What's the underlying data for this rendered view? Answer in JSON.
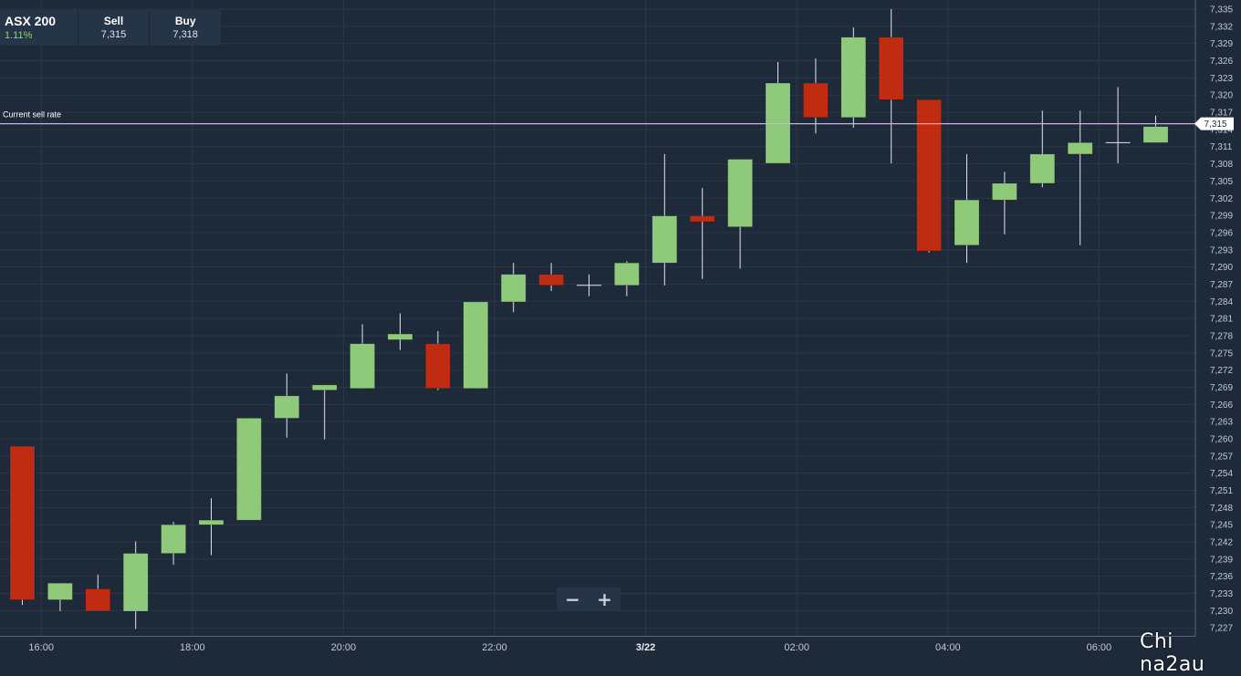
{
  "ticker": {
    "name": "ASX 200",
    "change": "1.11%",
    "sell_label": "Sell",
    "sell_value": "7,315",
    "buy_label": "Buy",
    "buy_value": "7,318"
  },
  "zoom": {
    "minus": "−",
    "plus": "+"
  },
  "watermark": "Chi na2au",
  "colors": {
    "background": "#1e2a3a",
    "up": "#8fc97a",
    "down": "#bf2c12",
    "current_line": "#d9a7e6"
  },
  "chart_data": {
    "type": "candlestick",
    "title": "",
    "xlabel": "",
    "ylabel": "",
    "ylim": [
      7225.6,
      7336.6
    ],
    "grid": true,
    "y_ticks": [
      7227,
      7230,
      7233,
      7236,
      7239,
      7242,
      7245,
      7248,
      7251,
      7254,
      7257,
      7260,
      7263,
      7266,
      7269,
      7272,
      7275,
      7278,
      7281,
      7284,
      7287,
      7290,
      7293,
      7296,
      7299,
      7302,
      7305,
      7308,
      7311,
      7314,
      7317,
      7320,
      7323,
      7326,
      7329,
      7332,
      7335
    ],
    "y_tick_labels": [
      "7,227",
      "7,230",
      "7,233",
      "7,236",
      "7,239",
      "7,242",
      "7,245",
      "7,248",
      "7,251",
      "7,254",
      "7,257",
      "7,260",
      "7,263",
      "7,266",
      "7,269",
      "7,272",
      "7,275",
      "7,278",
      "7,281",
      "7,284",
      "7,287",
      "7,290",
      "7,293",
      "7,296",
      "7,299",
      "7,302",
      "7,305",
      "7,308",
      "7,311",
      "7,314",
      "7,317",
      "7,320",
      "7,323",
      "7,326",
      "7,329",
      "7,332",
      "7,335"
    ],
    "x_ticks": [
      {
        "label": "16:00",
        "index": 0.5,
        "bold": false
      },
      {
        "label": "18:00",
        "index": 4.5,
        "bold": false
      },
      {
        "label": "20:00",
        "index": 8.5,
        "bold": false
      },
      {
        "label": "22:00",
        "index": 12.5,
        "bold": false
      },
      {
        "label": "3/22",
        "index": 16.5,
        "bold": true
      },
      {
        "label": "02:00",
        "index": 20.5,
        "bold": false
      },
      {
        "label": "04:00",
        "index": 24.5,
        "bold": false
      },
      {
        "label": "06:00",
        "index": 28.5,
        "bold": false
      }
    ],
    "candles": [
      {
        "o": 7258.7,
        "h": 7258.7,
        "l": 7231.0,
        "c": 7231.9
      },
      {
        "o": 7231.9,
        "h": 7234.8,
        "l": 7229.9,
        "c": 7234.8
      },
      {
        "o": 7233.8,
        "h": 7236.3,
        "l": 7229.9,
        "c": 7229.9
      },
      {
        "o": 7229.9,
        "h": 7242.1,
        "l": 7226.8,
        "c": 7240.0
      },
      {
        "o": 7240.0,
        "h": 7245.5,
        "l": 7238.0,
        "c": 7245.0
      },
      {
        "o": 7245.0,
        "h": 7249.6,
        "l": 7239.7,
        "c": 7245.8
      },
      {
        "o": 7245.8,
        "h": 7263.6,
        "l": 7245.8,
        "c": 7263.6
      },
      {
        "o": 7263.6,
        "h": 7271.4,
        "l": 7260.2,
        "c": 7267.5
      },
      {
        "o": 7268.5,
        "h": 7269.4,
        "l": 7259.9,
        "c": 7269.4
      },
      {
        "o": 7268.8,
        "h": 7280.0,
        "l": 7268.8,
        "c": 7276.6
      },
      {
        "o": 7277.3,
        "h": 7281.9,
        "l": 7275.5,
        "c": 7278.3
      },
      {
        "o": 7276.6,
        "h": 7278.8,
        "l": 7268.5,
        "c": 7268.8
      },
      {
        "o": 7268.8,
        "h": 7283.9,
        "l": 7268.8,
        "c": 7283.9
      },
      {
        "o": 7283.9,
        "h": 7290.7,
        "l": 7282.1,
        "c": 7288.7
      },
      {
        "o": 7288.7,
        "h": 7290.7,
        "l": 7285.8,
        "c": 7286.8
      },
      {
        "o": 7286.8,
        "h": 7288.7,
        "l": 7284.9,
        "c": 7286.8
      },
      {
        "o": 7286.8,
        "h": 7291.0,
        "l": 7284.9,
        "c": 7290.7
      },
      {
        "o": 7290.7,
        "h": 7309.7,
        "l": 7286.8,
        "c": 7298.9
      },
      {
        "o": 7298.9,
        "h": 7303.8,
        "l": 7287.9,
        "c": 7297.9
      },
      {
        "o": 7297.0,
        "h": 7308.8,
        "l": 7289.7,
        "c": 7308.8
      },
      {
        "o": 7308.1,
        "h": 7325.8,
        "l": 7308.1,
        "c": 7322.1
      },
      {
        "o": 7322.1,
        "h": 7326.4,
        "l": 7313.3,
        "c": 7316.1
      },
      {
        "o": 7316.1,
        "h": 7331.8,
        "l": 7314.3,
        "c": 7330.1
      },
      {
        "o": 7330.1,
        "h": 7335.0,
        "l": 7308.1,
        "c": 7319.2
      },
      {
        "o": 7319.2,
        "h": 7319.2,
        "l": 7292.5,
        "c": 7292.8
      },
      {
        "o": 7293.8,
        "h": 7309.7,
        "l": 7290.7,
        "c": 7301.7
      },
      {
        "o": 7301.7,
        "h": 7306.6,
        "l": 7295.7,
        "c": 7304.6
      },
      {
        "o": 7304.6,
        "h": 7317.3,
        "l": 7303.9,
        "c": 7309.7
      },
      {
        "o": 7309.7,
        "h": 7317.3,
        "l": 7293.8,
        "c": 7311.7
      },
      {
        "o": 7311.7,
        "h": 7321.4,
        "l": 7308.1,
        "c": 7311.7
      },
      {
        "o": 7311.7,
        "h": 7316.4,
        "l": 7311.7,
        "c": 7314.5
      }
    ],
    "current_rate": {
      "label": "Current sell rate",
      "value": 7315,
      "value_label": "7,315"
    }
  }
}
